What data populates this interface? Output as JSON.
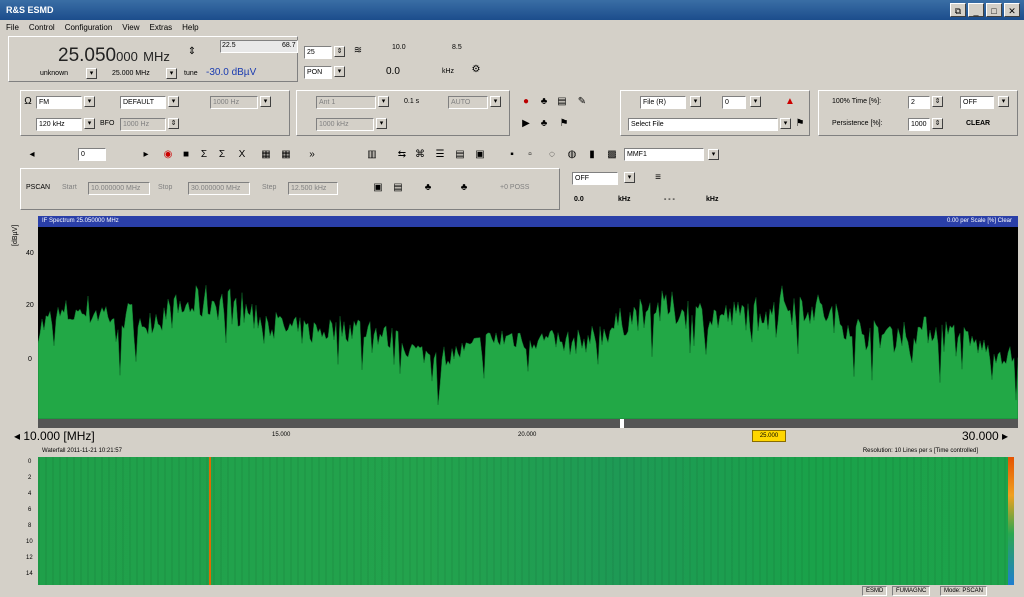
{
  "window": {
    "title": "R&S ESMD",
    "buttons": [
      "⧉",
      "_",
      "□",
      "✕"
    ]
  },
  "menu": [
    "File",
    "Control",
    "Configuration",
    "View",
    "Extras",
    "Help"
  ],
  "frequency": {
    "big_main": "25.050",
    "big_frac": "000",
    "unit": "MHz",
    "mode_label": "unknown",
    "step": "25.000 MHz",
    "tune_label": "tune",
    "level": "-30.0",
    "level_unit": "dBµV"
  },
  "top_controls": {
    "slider_left": "22.5",
    "slider_right": "68.7",
    "step_value": "25",
    "pon": "PON",
    "value_00": "0.0",
    "unit_khz": "kHz",
    "scale_a": "10.0",
    "scale_b": "8.5"
  },
  "row2": {
    "demod": "FM",
    "agc": "DEFAULT",
    "bw": "1000 Hz",
    "if_bw": "120 kHz",
    "bfo": "BFO",
    "bfo_val": "1000 Hz",
    "ant": "Ant 1",
    "att": "0.1 s",
    "auto": "AUTO",
    "auto2": "1000 kHz",
    "file": "File (R)",
    "file_num": "0",
    "select_file": "Select File",
    "time_label": "100% Time [%]:",
    "time_val": "2",
    "off_val": "OFF",
    "persistence_label": "Persistence [%]:",
    "persistence_val": "1000",
    "clear": "CLEAR"
  },
  "toolbar": {
    "step_val": "0",
    "memory": "MMF1"
  },
  "pscan": {
    "label": "PSCAN",
    "start_label": "Start",
    "start_val": "10.000000 MHz",
    "stop_label": "Stop",
    "stop_val": "30.000000 MHz",
    "step_label": "Step",
    "step_val": "12.500 kHz",
    "mode": "+0 POSS",
    "off": "OFF",
    "v1": "0.0",
    "u1": "kHz",
    "v2": "- - -",
    "u2": "kHz"
  },
  "spectrum": {
    "header_left": "IF Spectrum 25.050000 MHz",
    "header_right": "0.00 per Scale [%] Clear",
    "ylabel": "[dBµV]",
    "yticks": [
      "40",
      "20",
      "0"
    ],
    "x_left": "◂ 10.000 [MHz]",
    "x_mid1": "15.000",
    "x_mid2": "20.000",
    "x_marker": "25.000",
    "x_right": "30.000 ▸"
  },
  "waterfall": {
    "header_left": "Waterfall 2011-11-21 10:21:57",
    "header_right": "Resolution: 10 Lines per s [Time controlled]",
    "yticks": [
      "0",
      "2",
      "4",
      "6",
      "8",
      "10",
      "12",
      "14"
    ]
  },
  "status": {
    "device": "ESMD",
    "fw": "FUMAGNC",
    "mode": "Mode: PSCAN"
  },
  "colors": {
    "accent": "#2a3fa8",
    "spectrum_green": "#22a846",
    "marker": "#ffd600"
  },
  "icons": [
    "antenna-icon",
    "record-icon",
    "play-icon",
    "marker-icon",
    "print-icon"
  ]
}
